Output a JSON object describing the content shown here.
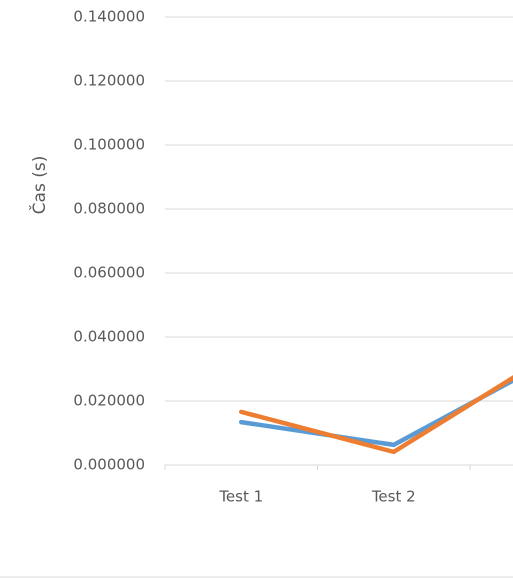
{
  "chart_data": {
    "type": "line",
    "y_label": "Čas (s)",
    "categories": [
      "Test 1",
      "Test 2",
      null
    ],
    "series": [
      {
        "color": "#5b9bd5",
        "values": [
          0.0134,
          0.0063,
          0.032
        ]
      },
      {
        "color": "#ed7d31",
        "values": [
          0.0166,
          0.0041,
          0.0337
        ]
      }
    ],
    "ylim": [
      0,
      0.14
    ],
    "yticks": [
      {
        "value": 0,
        "label": "0.000000"
      },
      {
        "value": 0.02,
        "label": "0.020000"
      },
      {
        "value": 0.04,
        "label": "0.040000"
      },
      {
        "value": 0.06,
        "label": "0.060000"
      },
      {
        "value": 0.08,
        "label": "0.080000"
      },
      {
        "value": 0.1,
        "label": "0.100000"
      },
      {
        "value": 0.12,
        "label": "0.120000"
      },
      {
        "value": 0.14,
        "label": "0.140000"
      }
    ],
    "grid": true
  }
}
